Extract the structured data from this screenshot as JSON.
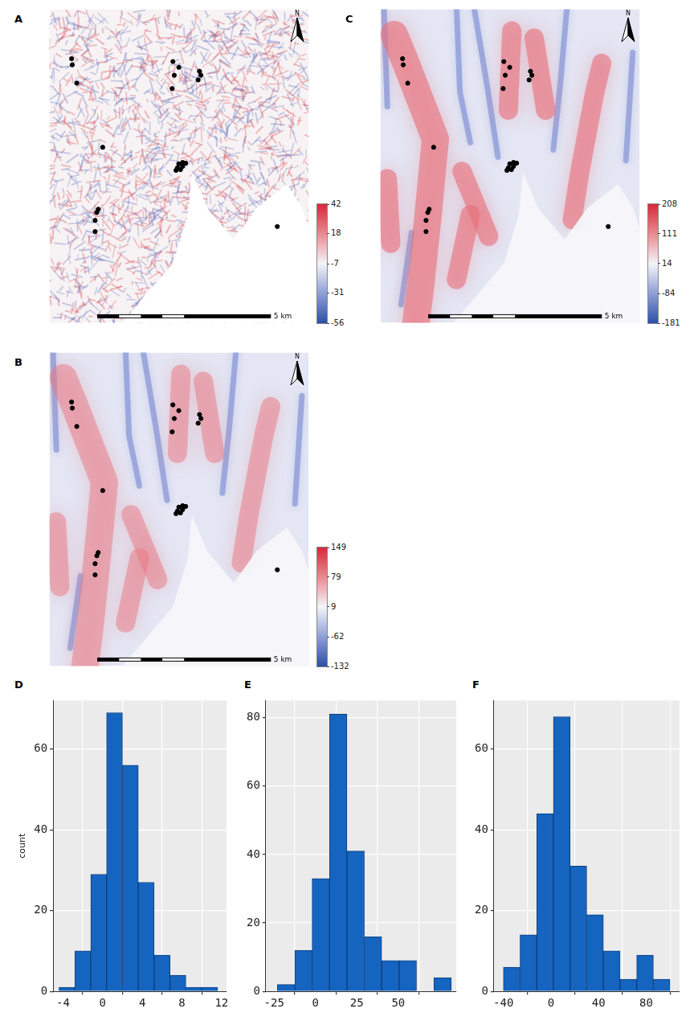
{
  "chart_data": [
    {
      "type": "map",
      "title": "A",
      "north": "N",
      "scale_bar": {
        "length": 5,
        "label": "5 km"
      },
      "colorbar": {
        "range": [
          -56,
          42
        ],
        "ticks": [
          42,
          18,
          -7,
          -31,
          -56
        ]
      },
      "xlim": [
        0,
        7.5
      ],
      "ylim": [
        0,
        8.7
      ],
      "tick_labels": false,
      "color": "#000000",
      "x": [
        0.64,
        0.66,
        0.79,
        1.54,
        3.57,
        3.74,
        3.61,
        3.55,
        4.34,
        4.38,
        4.3,
        3.74,
        3.85,
        3.94,
        3.7,
        3.79,
        3.85,
        3.66,
        1.41,
        1.37,
        1.32,
        1.32,
        6.59
      ],
      "values": [
        7.33,
        7.16,
        6.65,
        4.87,
        7.25,
        7.09,
        6.87,
        6.5,
        6.98,
        6.87,
        6.74,
        4.41,
        4.45,
        4.43,
        4.3,
        4.25,
        4.34,
        4.23,
        3.15,
        3.06,
        2.84,
        2.53,
        2.67
      ]
    },
    {
      "type": "map",
      "title": "B",
      "north": "N",
      "scale_bar": {
        "length": 5,
        "label": "5 km"
      },
      "colorbar": {
        "range": [
          -132,
          149
        ],
        "ticks": [
          149,
          79,
          9,
          -62,
          -132
        ]
      },
      "xlim": [
        0,
        7.5
      ],
      "ylim": [
        0,
        8.7
      ],
      "tick_labels": false,
      "color": "#000000",
      "x": [
        0.64,
        0.66,
        0.79,
        1.54,
        3.57,
        3.74,
        3.61,
        3.55,
        4.34,
        4.38,
        4.3,
        3.74,
        3.85,
        3.94,
        3.7,
        3.79,
        3.85,
        3.66,
        1.41,
        1.37,
        1.32,
        1.32,
        6.59
      ],
      "values": [
        7.33,
        7.16,
        6.65,
        4.87,
        7.25,
        7.09,
        6.87,
        6.5,
        6.98,
        6.87,
        6.74,
        4.41,
        4.45,
        4.43,
        4.3,
        4.25,
        4.34,
        4.23,
        3.15,
        3.06,
        2.84,
        2.53,
        2.67
      ]
    },
    {
      "type": "map",
      "title": "C",
      "north": "N",
      "scale_bar": {
        "length": 5,
        "label": "5 km"
      },
      "colorbar": {
        "range": [
          -181,
          208
        ],
        "ticks": [
          208,
          111,
          14,
          -84,
          -181
        ]
      },
      "xlim": [
        0,
        7.5
      ],
      "ylim": [
        0,
        8.7
      ],
      "tick_labels": false,
      "color": "#000000",
      "x": [
        0.64,
        0.66,
        0.79,
        1.54,
        3.57,
        3.74,
        3.61,
        3.55,
        4.34,
        4.38,
        4.3,
        3.74,
        3.85,
        3.94,
        3.7,
        3.79,
        3.85,
        3.66,
        1.41,
        1.37,
        1.32,
        1.32,
        6.59
      ],
      "values": [
        7.33,
        7.16,
        6.65,
        4.87,
        7.25,
        7.09,
        6.87,
        6.5,
        6.98,
        6.87,
        6.74,
        4.41,
        4.45,
        4.43,
        4.3,
        4.25,
        4.34,
        4.23,
        3.15,
        3.06,
        2.84,
        2.53,
        2.67
      ]
    },
    {
      "type": "histogram",
      "title": "D",
      "ylabel": "count",
      "color": "#1565c0",
      "grid": true,
      "bins": [
        -4.4,
        -2.8,
        -1.2,
        0.4,
        2.0,
        3.6,
        5.2,
        6.8,
        8.4,
        10.0,
        11.6
      ],
      "values": [
        1,
        10,
        29,
        69,
        56,
        27,
        9,
        4,
        1,
        1
      ],
      "xlim": [
        -5,
        12.5
      ],
      "xticks": [
        -4,
        0,
        4,
        8,
        12
      ],
      "ylim": [
        0,
        72
      ],
      "yticks": [
        0,
        20,
        40,
        60
      ]
    },
    {
      "type": "histogram",
      "title": "E",
      "color": "#1565c0",
      "grid": true,
      "bins": [
        -23,
        -12.5,
        -2,
        8.5,
        19,
        29.5,
        40,
        50.5,
        61,
        71.5,
        82
      ],
      "values": [
        2,
        12,
        33,
        81,
        41,
        16,
        9,
        9,
        0,
        4
      ],
      "xlim": [
        -30,
        85
      ],
      "xticks": [
        -25,
        0,
        25,
        50
      ],
      "ylim": [
        0,
        85
      ],
      "yticks": [
        0,
        20,
        40,
        60,
        80
      ]
    },
    {
      "type": "histogram",
      "title": "F",
      "color": "#1565c0",
      "grid": true,
      "bins": [
        -40,
        -26,
        -12,
        2,
        16,
        30,
        44,
        58,
        72,
        86,
        100
      ],
      "values": [
        6,
        14,
        44,
        68,
        31,
        19,
        10,
        3,
        9,
        3
      ],
      "xlim": [
        -48,
        108
      ],
      "xticks": [
        -40,
        0,
        40,
        80
      ],
      "ylim": [
        0,
        72
      ],
      "yticks": [
        0,
        20,
        40,
        60
      ]
    }
  ]
}
